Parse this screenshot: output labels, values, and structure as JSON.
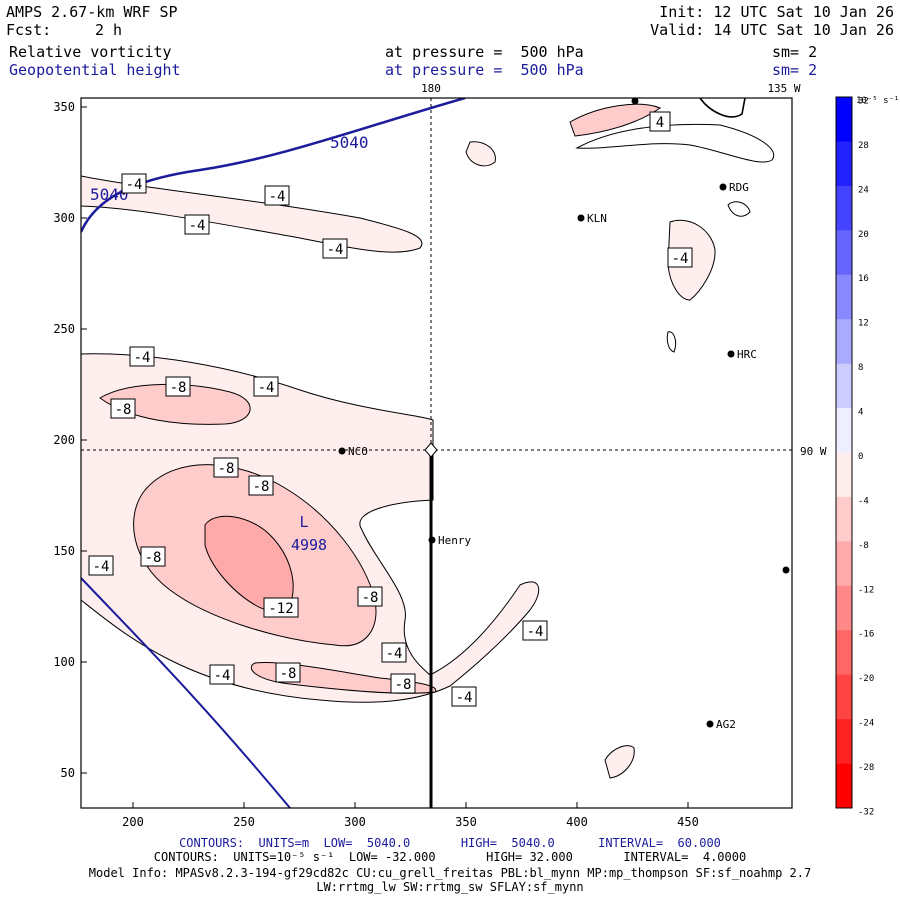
{
  "header": {
    "model": "AMPS 2.67-km WRF SP",
    "init": "Init: 12 UTC Sat 10 Jan 26",
    "fcst_label": "Fcst:",
    "fcst_value": "2 h",
    "valid": "Valid: 14 UTC Sat 10 Jan 26",
    "field1": "Relative vorticity",
    "field1_level": "at pressure =  500 hPa",
    "field1_sm": "sm= 2",
    "field2": "Geopotential height",
    "field2_level": "at pressure =  500 hPa",
    "field2_sm": "sm= 2"
  },
  "axes": {
    "x_ticks": [
      "200",
      "250",
      "300",
      "350",
      "400",
      "450"
    ],
    "y_ticks": [
      "350",
      "300",
      "250",
      "200",
      "150",
      "100",
      "50"
    ],
    "lon_180": "180",
    "lon_135w": "135 W",
    "lon_90w": "90 W"
  },
  "stations": [
    {
      "name": "KLN"
    },
    {
      "name": "RDG"
    },
    {
      "name": "HRC"
    },
    {
      "name": "NCO"
    },
    {
      "name": "Henry"
    },
    {
      "name": "AG2"
    }
  ],
  "contour_labels": {
    "m4": "-4",
    "m8": "-8",
    "m12": "-12",
    "p4": "4",
    "h5040": "5040",
    "low_letter": "L",
    "low_value": "4998"
  },
  "colorbar": {
    "unit": "10⁻⁵ s⁻¹",
    "ticks": [
      "32",
      "28",
      "24",
      "20",
      "16",
      "12",
      "8",
      "4",
      "0",
      "-4",
      "-8",
      "-12",
      "-16",
      "-20",
      "-24",
      "-28",
      "-32"
    ],
    "colors": [
      "#0000ff",
      "#2222ff",
      "#4444ff",
      "#6666ff",
      "#8888ff",
      "#aaaaff",
      "#ccccff",
      "#eeeeff",
      "#ffeeee",
      "#ffcccc",
      "#ffaaaa",
      "#ff8888",
      "#ff6666",
      "#ff4444",
      "#ff2222",
      "#ff0000"
    ]
  },
  "footer": {
    "line1": "CONTOURS:  UNITS=m  LOW=  5040.0       HIGH=  5040.0      INTERVAL=  60.000",
    "line2": "CONTOURS:  UNITS=10⁻⁵ s⁻¹  LOW= -32.000       HIGH= 32.000       INTERVAL=  4.0000",
    "line3": "Model Info: MPASv8.2.3-194-gf29cd82c CU:cu_grell_freitas PBL:bl_mynn MP:mp_thompson SF:sf_noahmp 2.7",
    "line4": "LW:rrtmg_lw SW:rrtmg_sw SFLAY:sf_mynn"
  }
}
